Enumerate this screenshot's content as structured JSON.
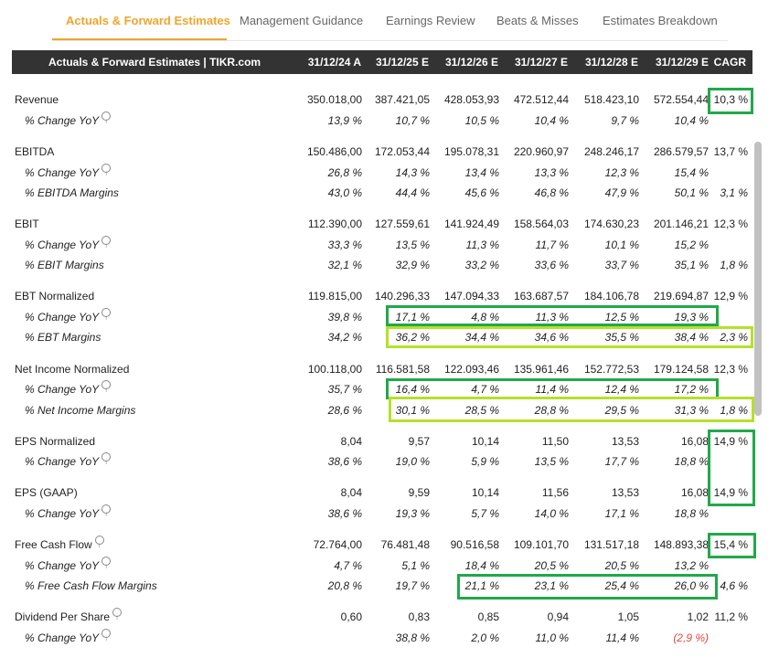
{
  "tabs": [
    {
      "label": "Actuals & Forward Estimates",
      "active": true
    },
    {
      "label": "Management Guidance"
    },
    {
      "label": "Earnings Review"
    },
    {
      "label": "Beats & Misses"
    },
    {
      "label": "Estimates Breakdown"
    }
  ],
  "header": {
    "title": "Actuals & Forward Estimates | TIKR.com",
    "columns": [
      "31/12/24 A",
      "31/12/25 E",
      "31/12/26 E",
      "31/12/27 E",
      "31/12/28 E",
      "31/12/29 E",
      "CAGR"
    ]
  },
  "colors": {
    "accent": "#f0a52a",
    "highlight_green": "#22a84a",
    "highlight_lime": "#b6e02a",
    "negative": "#e2473f",
    "header_bg": "#333333"
  },
  "rows": [
    {
      "label": "Revenue",
      "values": [
        "350.018,00",
        "387.421,05",
        "428.053,93",
        "472.512,44",
        "518.423,10",
        "572.554,44",
        "10,3 %"
      ]
    },
    {
      "label": "% Change YoY",
      "values": [
        "13,9 %",
        "10,7 %",
        "10,5 %",
        "10,4 %",
        "9,7 %",
        "10,4 %",
        ""
      ]
    },
    {
      "label": "EBITDA",
      "values": [
        "150.486,00",
        "172.053,44",
        "195.078,31",
        "220.960,97",
        "248.246,17",
        "286.579,57",
        "13,7 %"
      ]
    },
    {
      "label": "% Change YoY",
      "values": [
        "26,8 %",
        "14,3 %",
        "13,4 %",
        "13,3 %",
        "12,3 %",
        "15,4 %",
        ""
      ]
    },
    {
      "label": "% EBITDA Margins",
      "values": [
        "43,0 %",
        "44,4 %",
        "45,6 %",
        "46,8 %",
        "47,9 %",
        "50,1 %",
        "3,1 %"
      ]
    },
    {
      "label": "EBIT",
      "values": [
        "112.390,00",
        "127.559,61",
        "141.924,49",
        "158.564,03",
        "174.630,23",
        "201.146,21",
        "12,3 %"
      ]
    },
    {
      "label": "% Change YoY",
      "values": [
        "33,3 %",
        "13,5 %",
        "11,3 %",
        "11,7 %",
        "10,1 %",
        "15,2 %",
        ""
      ]
    },
    {
      "label": "% EBIT Margins",
      "values": [
        "32,1 %",
        "32,9 %",
        "33,2 %",
        "33,6 %",
        "33,7 %",
        "35,1 %",
        "1,8 %"
      ]
    },
    {
      "label": "EBT Normalized",
      "values": [
        "119.815,00",
        "140.296,33",
        "147.094,33",
        "163.687,57",
        "184.106,78",
        "219.694,87",
        "12,9 %"
      ]
    },
    {
      "label": "% Change YoY",
      "values": [
        "39,8 %",
        "17,1 %",
        "4,8 %",
        "11,3 %",
        "12,5 %",
        "19,3 %",
        ""
      ]
    },
    {
      "label": "% EBT Margins",
      "values": [
        "34,2 %",
        "36,2 %",
        "34,4 %",
        "34,6 %",
        "35,5 %",
        "38,4 %",
        "2,3 %"
      ]
    },
    {
      "label": "Net Income Normalized",
      "values": [
        "100.118,00",
        "116.581,58",
        "122.093,46",
        "135.961,46",
        "152.772,53",
        "179.124,58",
        "12,3 %"
      ]
    },
    {
      "label": "% Change YoY",
      "values": [
        "35,7 %",
        "16,4 %",
        "4,7 %",
        "11,4 %",
        "12,4 %",
        "17,2 %",
        ""
      ]
    },
    {
      "label": "% Net Income Margins",
      "values": [
        "28,6 %",
        "30,1 %",
        "28,5 %",
        "28,8 %",
        "29,5 %",
        "31,3 %",
        "1,8 %"
      ]
    },
    {
      "label": "EPS Normalized",
      "values": [
        "8,04",
        "9,57",
        "10,14",
        "11,50",
        "13,53",
        "16,08",
        "14,9 %"
      ]
    },
    {
      "label": "% Change YoY",
      "values": [
        "38,6 %",
        "19,0 %",
        "5,9 %",
        "13,5 %",
        "17,7 %",
        "18,8 %",
        ""
      ]
    },
    {
      "label": "EPS (GAAP)",
      "values": [
        "8,04",
        "9,59",
        "10,14",
        "11,56",
        "13,53",
        "16,08",
        "14,9 %"
      ]
    },
    {
      "label": "% Change YoY",
      "values": [
        "38,6 %",
        "19,3 %",
        "5,7 %",
        "14,0 %",
        "17,1 %",
        "18,8 %",
        ""
      ]
    },
    {
      "label": "Free Cash Flow",
      "values": [
        "72.764,00",
        "76.481,48",
        "90.516,58",
        "109.101,70",
        "131.517,18",
        "148.893,38",
        "15,4 %"
      ]
    },
    {
      "label": "% Change YoY",
      "values": [
        "4,7 %",
        "5,1 %",
        "18,4 %",
        "20,5 %",
        "20,5 %",
        "13,2 %",
        ""
      ]
    },
    {
      "label": "% Free Cash Flow Margins",
      "values": [
        "20,8 %",
        "19,7 %",
        "21,1 %",
        "23,1 %",
        "25,4 %",
        "26,0 %",
        "4,6 %"
      ]
    },
    {
      "label": "Dividend Per Share",
      "values": [
        "0,60",
        "0,83",
        "0,85",
        "0,94",
        "1,05",
        "1,02",
        "11,2 %"
      ]
    },
    {
      "label": "% Change YoY",
      "values": [
        "",
        "38,8 %",
        "2,0 %",
        "11,0 %",
        "11,4 %",
        "(2,9 %)",
        ""
      ]
    }
  ]
}
